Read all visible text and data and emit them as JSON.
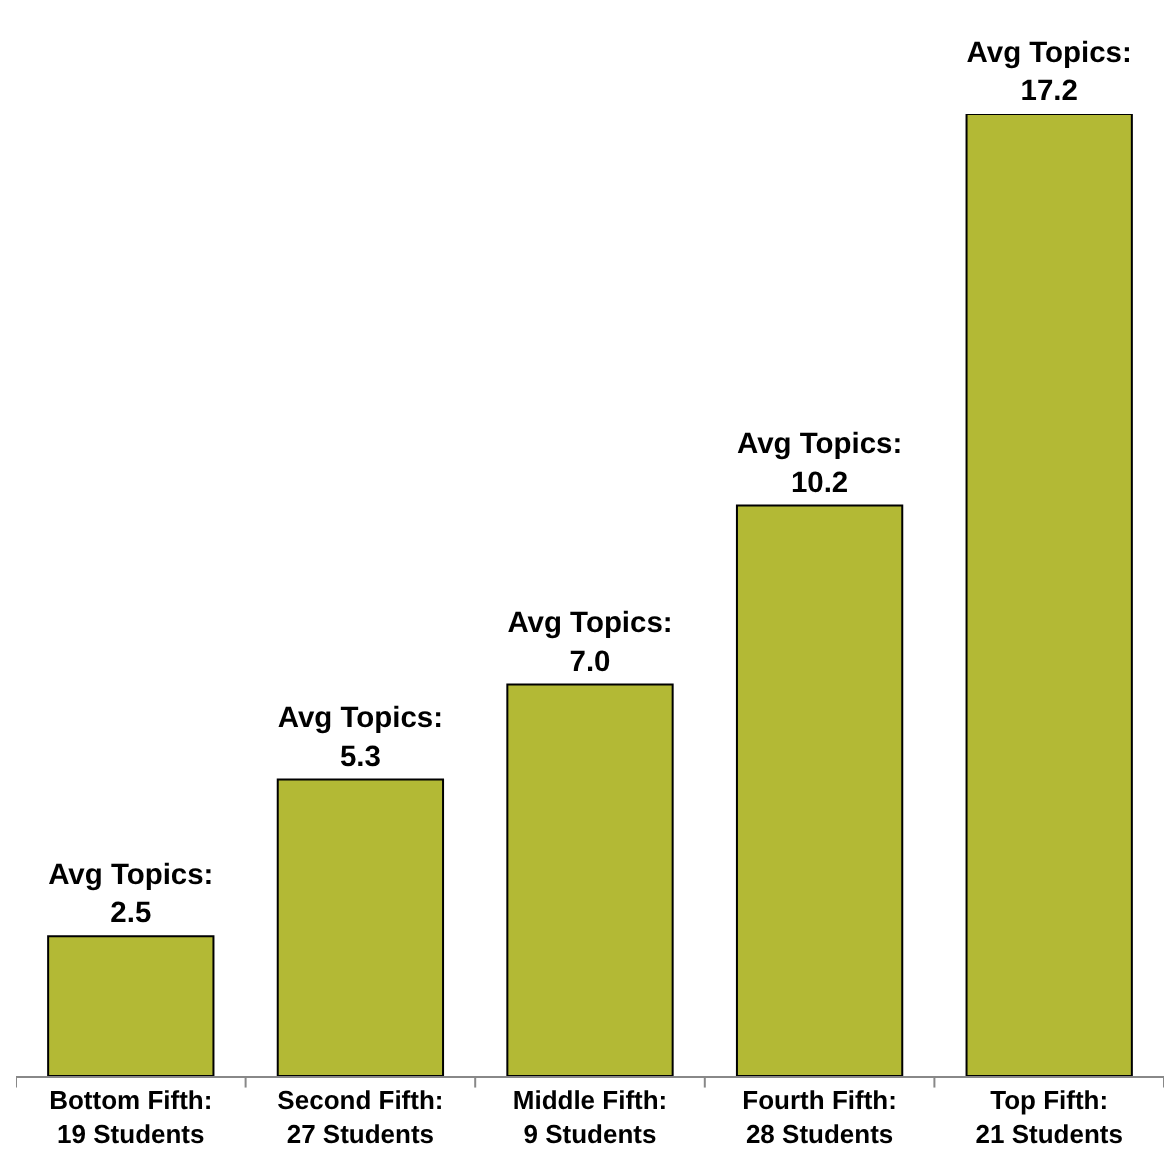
{
  "chart_data": {
    "type": "bar",
    "categories": [
      "Bottom Fifth:\n19 Students",
      "Second Fifth:\n27 Students",
      "Middle Fifth:\n9 Students",
      "Fourth Fifth:\n28 Students",
      "Top Fifth:\n21 Students"
    ],
    "values": [
      2.5,
      5.3,
      7.0,
      10.2,
      17.2
    ],
    "value_labels": [
      "Avg Topics:\n2.5",
      "Avg Topics:\n5.3",
      "Avg Topics:\n7.0",
      "Avg Topics:\n10.2",
      "Avg Topics:\n17.2"
    ],
    "color": "#b3b935",
    "tick_labels": "x"
  }
}
